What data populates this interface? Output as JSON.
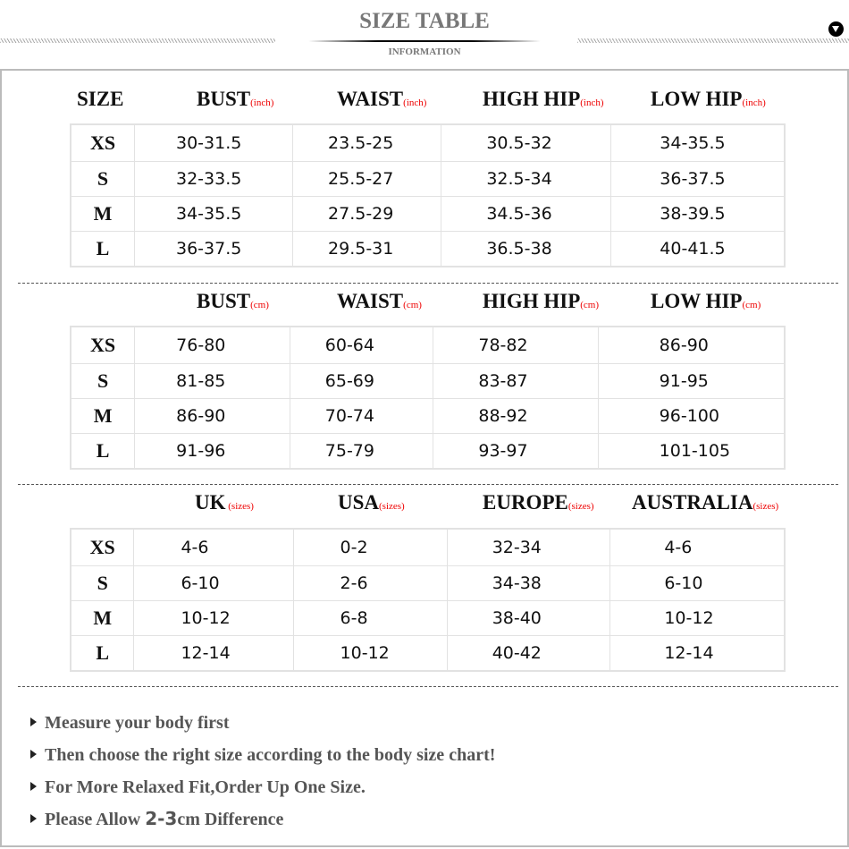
{
  "header": {
    "title": "SIZE TABLE",
    "subtitle": "INFORMATION"
  },
  "sections": [
    {
      "columns": [
        {
          "label": "SIZE",
          "unit": ""
        },
        {
          "label": "BUST",
          "unit": "(inch)"
        },
        {
          "label": "WAIST",
          "unit": "(inch)"
        },
        {
          "label": "HIGH HIP",
          "unit": "(inch)"
        },
        {
          "label": "LOW HIP",
          "unit": "(inch)"
        }
      ],
      "rows": [
        [
          "XS",
          "30-31.5",
          "23.5-25",
          "30.5-32",
          "34-35.5"
        ],
        [
          "S",
          "32-33.5",
          "25.5-27",
          "32.5-34",
          "36-37.5"
        ],
        [
          "M",
          "34-35.5",
          "27.5-29",
          "34.5-36",
          "38-39.5"
        ],
        [
          "L",
          "36-37.5",
          "29.5-31",
          "36.5-38",
          "40-41.5"
        ]
      ]
    },
    {
      "columns": [
        {
          "label": "",
          "unit": ""
        },
        {
          "label": "BUST",
          "unit": "(cm)"
        },
        {
          "label": "WAIST",
          "unit": "(cm)"
        },
        {
          "label": "HIGH HIP",
          "unit": "(cm)"
        },
        {
          "label": "LOW HIP",
          "unit": "(cm)"
        }
      ],
      "rows": [
        [
          "XS",
          "76-80",
          "60-64",
          "78-82",
          "86-90"
        ],
        [
          "S",
          "81-85",
          "65-69",
          "83-87",
          "91-95"
        ],
        [
          "M",
          "86-90",
          "70-74",
          "88-92",
          "96-100"
        ],
        [
          "L",
          "91-96",
          "75-79",
          "93-97",
          "101-105"
        ]
      ]
    },
    {
      "columns": [
        {
          "label": "",
          "unit": ""
        },
        {
          "label": "UK",
          "unit": " (sizes)"
        },
        {
          "label": "USA",
          "unit": "(sizes)"
        },
        {
          "label": "EUROPE",
          "unit": "(sizes)"
        },
        {
          "label": "AUSTRALIA",
          "unit": "(sizes)"
        }
      ],
      "rows": [
        [
          "XS",
          "4-6",
          "0-2",
          "32-34",
          "4-6"
        ],
        [
          "S",
          "6-10",
          "2-6",
          "34-38",
          "6-10"
        ],
        [
          "M",
          "10-12",
          "6-8",
          "38-40",
          "10-12"
        ],
        [
          "L",
          "12-14",
          "10-12",
          "40-42",
          "12-14"
        ]
      ]
    }
  ],
  "notes": [
    {
      "pre": "Measure your body first",
      "bold": "",
      "post": ""
    },
    {
      "pre": "Then choose the right size according to the body size chart!",
      "bold": "",
      "post": ""
    },
    {
      "pre": "For More Relaxed Fit,Order Up One Size.",
      "bold": "",
      "post": ""
    },
    {
      "pre": "Please Allow ",
      "bold": "2-3",
      "post": "cm Difference"
    }
  ]
}
